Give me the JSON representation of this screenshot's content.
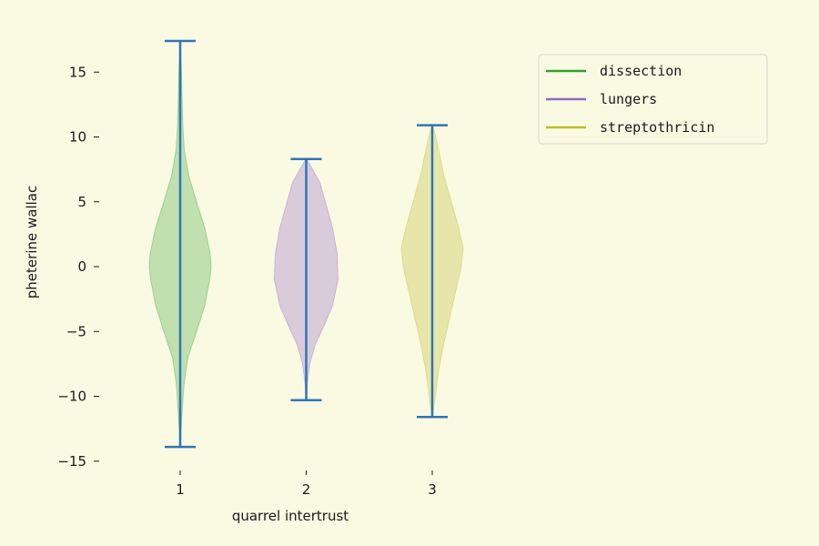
{
  "chart_data": {
    "type": "violin",
    "title": "",
    "xlabel": "quarrel intertrust",
    "ylabel": "pheterine wallac",
    "ylim": [
      -15.5,
      18.5
    ],
    "yticks": [
      -15,
      -10,
      -5,
      0,
      5,
      10,
      15
    ],
    "ytick_labels": [
      "−15",
      "−10",
      "−5",
      "0",
      "5",
      "10",
      "15"
    ],
    "xticks": [
      1,
      2,
      3
    ],
    "xtick_labels": [
      "1",
      "2",
      "3"
    ],
    "grid": false,
    "legend_position": "top-right",
    "line_color": "#2f75b5",
    "background": "#fafae3",
    "series": [
      {
        "name": "dissection",
        "position": 1,
        "color": "#2ca02c",
        "fill": "#c0e0b0",
        "min": -13.9,
        "max": 17.4,
        "profile": [
          [
            -13.9,
            0.2
          ],
          [
            -12.5,
            1.0
          ],
          [
            -11,
            2.3
          ],
          [
            -9,
            4.3
          ],
          [
            -7,
            8.5
          ],
          [
            -5,
            18
          ],
          [
            -3,
            27
          ],
          [
            -1,
            32.5
          ],
          [
            0,
            34
          ],
          [
            1,
            33
          ],
          [
            3,
            27
          ],
          [
            5,
            18
          ],
          [
            7,
            9.5
          ],
          [
            9,
            4.5
          ],
          [
            11,
            2.8
          ],
          [
            13,
            2.1
          ],
          [
            15,
            1.4
          ],
          [
            16.5,
            0.6
          ],
          [
            17.4,
            0.2
          ]
        ]
      },
      {
        "name": "lungers",
        "position": 2,
        "color": "#9467bd",
        "fill": "#dacbdb",
        "min": -10.3,
        "max": 8.3,
        "profile": [
          [
            -10.3,
            0.2
          ],
          [
            -9,
            1.3
          ],
          [
            -7.5,
            4
          ],
          [
            -6,
            10
          ],
          [
            -4.5,
            20
          ],
          [
            -3,
            29
          ],
          [
            -1,
            35
          ],
          [
            1,
            34
          ],
          [
            3,
            29
          ],
          [
            5,
            21
          ],
          [
            6.5,
            15
          ],
          [
            7.5,
            7
          ],
          [
            8.3,
            0.5
          ]
        ]
      },
      {
        "name": "streptothricin",
        "position": 3,
        "color": "#bcbd22",
        "fill": "#e6e6aa",
        "min": -11.6,
        "max": 10.9,
        "profile": [
          [
            -11.6,
            0.2
          ],
          [
            -10.5,
            2.5
          ],
          [
            -8,
            7
          ],
          [
            -6,
            12.5
          ],
          [
            -4,
            19
          ],
          [
            -2,
            25.5
          ],
          [
            0,
            32
          ],
          [
            1.5,
            34
          ],
          [
            3,
            29
          ],
          [
            5,
            21
          ],
          [
            7,
            13
          ],
          [
            9,
            7
          ],
          [
            10,
            4
          ],
          [
            10.9,
            0.3
          ]
        ]
      }
    ]
  }
}
